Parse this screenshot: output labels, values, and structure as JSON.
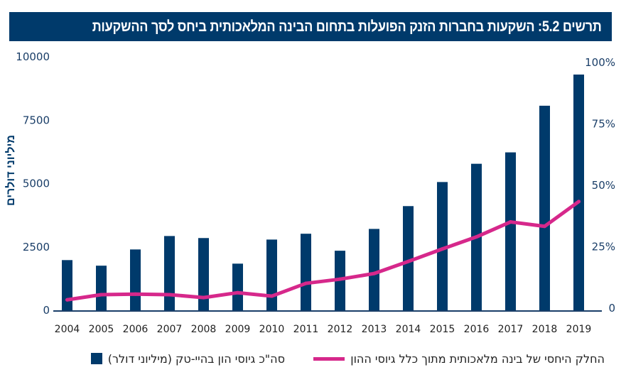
{
  "title": "תרשים 5.2: השקעות בחברות הזנק הפועלות בתחום הבינה המלאכותית ביחס לסך ההשקעות",
  "colors": {
    "bar": "#003a6b",
    "line": "#d6288b",
    "title_bg": "#003a6b",
    "axis_text": "#1a3e68"
  },
  "chart_data": {
    "type": "bar",
    "title": "תרשים 5.2: השקעות בחברות הזנק הפועלות בתחום הבינה המלאכותית ביחס לסך ההשקעות",
    "xlabel": "",
    "ylabel": "מיליוני דולרים",
    "y2label": "",
    "categories": [
      "2004",
      "2005",
      "2006",
      "2007",
      "2008",
      "2009",
      "2010",
      "2011",
      "2012",
      "2013",
      "2014",
      "2015",
      "2016",
      "2017",
      "2018",
      "2019"
    ],
    "ylim": [
      0,
      10000
    ],
    "y_ticks": [
      "0",
      "2500",
      "5000",
      "7500",
      "10000"
    ],
    "y_tick_values": [
      0,
      2500,
      5000,
      7500,
      10000
    ],
    "y2lim": [
      0,
      100
    ],
    "y2_ticks": [
      "0",
      "25%",
      "50%",
      "75%",
      "100%"
    ],
    "y2_tick_values": [
      0,
      25,
      50,
      75,
      100
    ],
    "grid": false,
    "legend_position": "bottom",
    "series": [
      {
        "name": "סה\"כ גיוסי הון בהיי-טק (מיליוני דולר)",
        "type": "bar",
        "axis": "left",
        "values": [
          1980,
          1760,
          2400,
          2930,
          2850,
          1840,
          2790,
          3020,
          2350,
          3210,
          4110,
          5060,
          5780,
          6230,
          8070,
          9300
        ]
      },
      {
        "name": "החלק היחסי של בינה מלאכותית מתוך כלל גיוסי ההון",
        "type": "line",
        "axis": "right",
        "unit": "%",
        "values": [
          3.4,
          5.5,
          5.7,
          5.5,
          4.3,
          6.3,
          4.9,
          10.1,
          11.8,
          14.1,
          19.0,
          24.1,
          29.0,
          35.1,
          33.3,
          43.4
        ]
      }
    ]
  },
  "legend": {
    "bar_label": "סה\"כ גיוסי הון בהיי-טק (מיליוני דולר)",
    "line_label": "החלק היחסי של בינה מלאכותית מתוך כלל גיוסי ההון"
  }
}
